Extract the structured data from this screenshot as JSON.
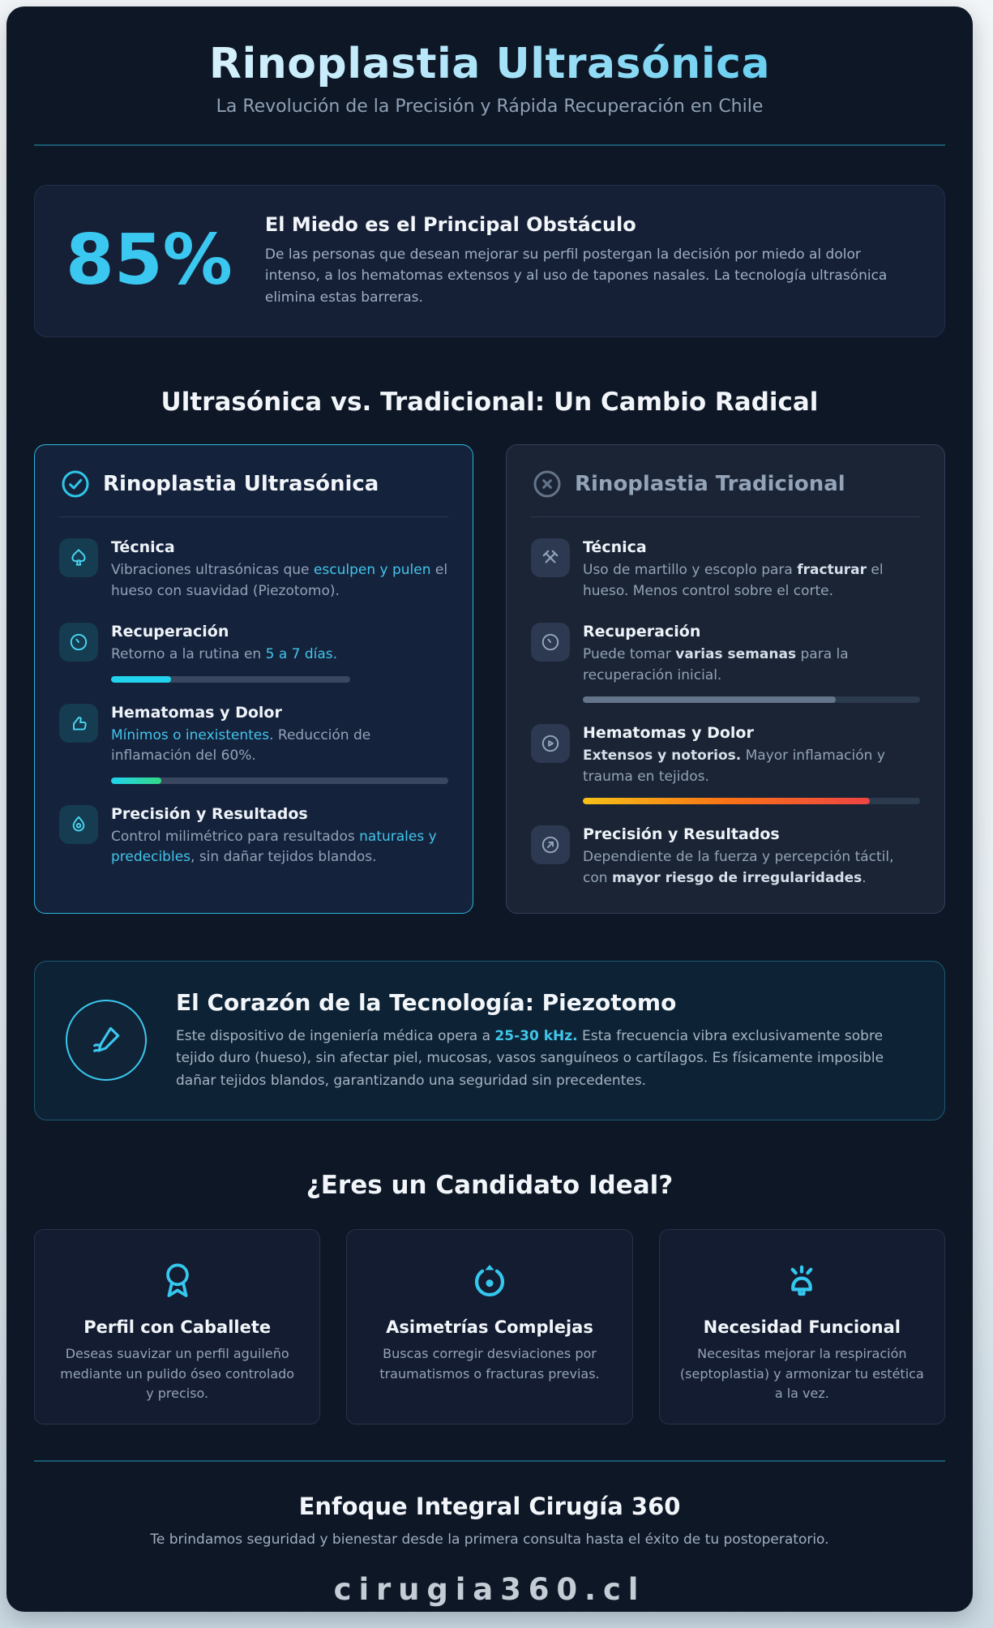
{
  "theme": {
    "accent_cyan": "#3bc8f0",
    "title_gradient": [
      "#eaf8fe",
      "#3fc3ec"
    ],
    "page_bg": "#0e1726",
    "card_border_ultra": "#2cb7da",
    "card_border_trad": "#32405a",
    "bar_cyan": "#22d3ee",
    "bar_cyan_green": [
      "#22d3ee",
      "#34d987"
    ],
    "bar_slate": "#64748b",
    "bar_heat": [
      "#f6c117",
      "#f97316",
      "#ef4444"
    ]
  },
  "header": {
    "title": "Rinoplastia Ultrasónica",
    "subtitle": "La Revolución de la Precisión y Rápida Recuperación en Chile"
  },
  "stat": {
    "value": "85%",
    "heading": "El Miedo es el Principal Obstáculo",
    "body": "De las personas que desean mejorar su perfil postergan la decisión por miedo al dolor intenso, a los hematomas extensos y al uso de tapones nasales. La tecnología ultrasónica elimina estas barreras."
  },
  "comparison": {
    "heading": "Ultrasónica vs. Tradicional: Un Cambio Radical",
    "ultrasonic": {
      "title": "Rinoplastia Ultrasónica",
      "items": [
        {
          "title": "Técnica",
          "segments": [
            {
              "text": "Vibraciones ultrasónicas que ",
              "style": "normal"
            },
            {
              "text": "esculpen y pulen",
              "style": "accent"
            },
            {
              "text": " el hueso con suavidad (Piezotomo).",
              "style": "normal"
            }
          ]
        },
        {
          "title": "Recuperación",
          "segments": [
            {
              "text": "Retorno a la rutina en ",
              "style": "normal"
            },
            {
              "text": "5 a 7 días.",
              "style": "accent"
            }
          ],
          "bar": {
            "fill_pct": 25,
            "track_pct": 71
          }
        },
        {
          "title": "Hematomas y Dolor",
          "segments": [
            {
              "text": "Mínimos o inexistentes.",
              "style": "accent"
            },
            {
              "text": " Reducción de inflamación del 60%.",
              "style": "normal"
            }
          ],
          "bar": {
            "fill_pct": 15,
            "track_pct": 100
          }
        },
        {
          "title": "Precisión y Resultados",
          "segments": [
            {
              "text": "Control milimétrico para resultados ",
              "style": "normal"
            },
            {
              "text": "naturales y predecibles",
              "style": "accent"
            },
            {
              "text": ", sin dañar tejidos blandos.",
              "style": "normal"
            }
          ]
        }
      ]
    },
    "traditional": {
      "title": "Rinoplastia Tradicional",
      "items": [
        {
          "title": "Técnica",
          "segments": [
            {
              "text": "Uso de martillo y escoplo para ",
              "style": "normal"
            },
            {
              "text": "fracturar",
              "style": "em"
            },
            {
              "text": " el hueso. Menos control sobre el corte.",
              "style": "normal"
            }
          ]
        },
        {
          "title": "Recuperación",
          "segments": [
            {
              "text": "Puede tomar ",
              "style": "normal"
            },
            {
              "text": "varias semanas",
              "style": "em"
            },
            {
              "text": " para la recuperación inicial.",
              "style": "normal"
            }
          ],
          "bar": {
            "fill_pct": 75,
            "track_pct": 100
          }
        },
        {
          "title": "Hematomas y Dolor",
          "segments": [
            {
              "text": "Extensos y notorios.",
              "style": "em"
            },
            {
              "text": " Mayor inflamación y trauma en tejidos.",
              "style": "normal"
            }
          ],
          "bar": {
            "fill_pct": 85,
            "track_pct": 100
          }
        },
        {
          "title": "Precisión y Resultados",
          "segments": [
            {
              "text": "Dependiente de la fuerza y percepción táctil, con ",
              "style": "normal"
            },
            {
              "text": "mayor riesgo de irregularidades",
              "style": "em"
            },
            {
              "text": ".",
              "style": "normal"
            }
          ]
        }
      ]
    }
  },
  "technology": {
    "heading": "El Corazón de la Tecnología: Piezotomo",
    "segments": [
      {
        "text": "Este dispositivo de ingeniería médica opera a ",
        "style": "normal"
      },
      {
        "text": "25-30 kHz.",
        "style": "accent-bold"
      },
      {
        "text": " Esta frecuencia vibra exclusivamente sobre tejido duro (hueso), sin afectar piel, mucosas, vasos sanguíneos o cartílagos. Es físicamente imposible dañar tejidos blandos, garantizando una seguridad sin precedentes.",
        "style": "normal"
      }
    ]
  },
  "candidates": {
    "heading": "¿Eres un Candidato Ideal?",
    "cards": [
      {
        "title": "Perfil con Caballete",
        "body": "Deseas suavizar un perfil aguileño mediante un pulido óseo controlado y preciso."
      },
      {
        "title": "Asimetrías Complejas",
        "body": "Buscas corregir desviaciones por traumatismos o fracturas previas."
      },
      {
        "title": "Necesidad Funcional",
        "body": "Necesitas mejorar la respiración (septoplastia) y armonizar tu estética a la vez."
      }
    ]
  },
  "footer": {
    "heading": "Enfoque Integral Cirugía 360",
    "body": "Te brindamos seguridad y bienestar desde la primera consulta hasta el éxito de tu postoperatorio.",
    "domain": "cirugia360.cl"
  }
}
